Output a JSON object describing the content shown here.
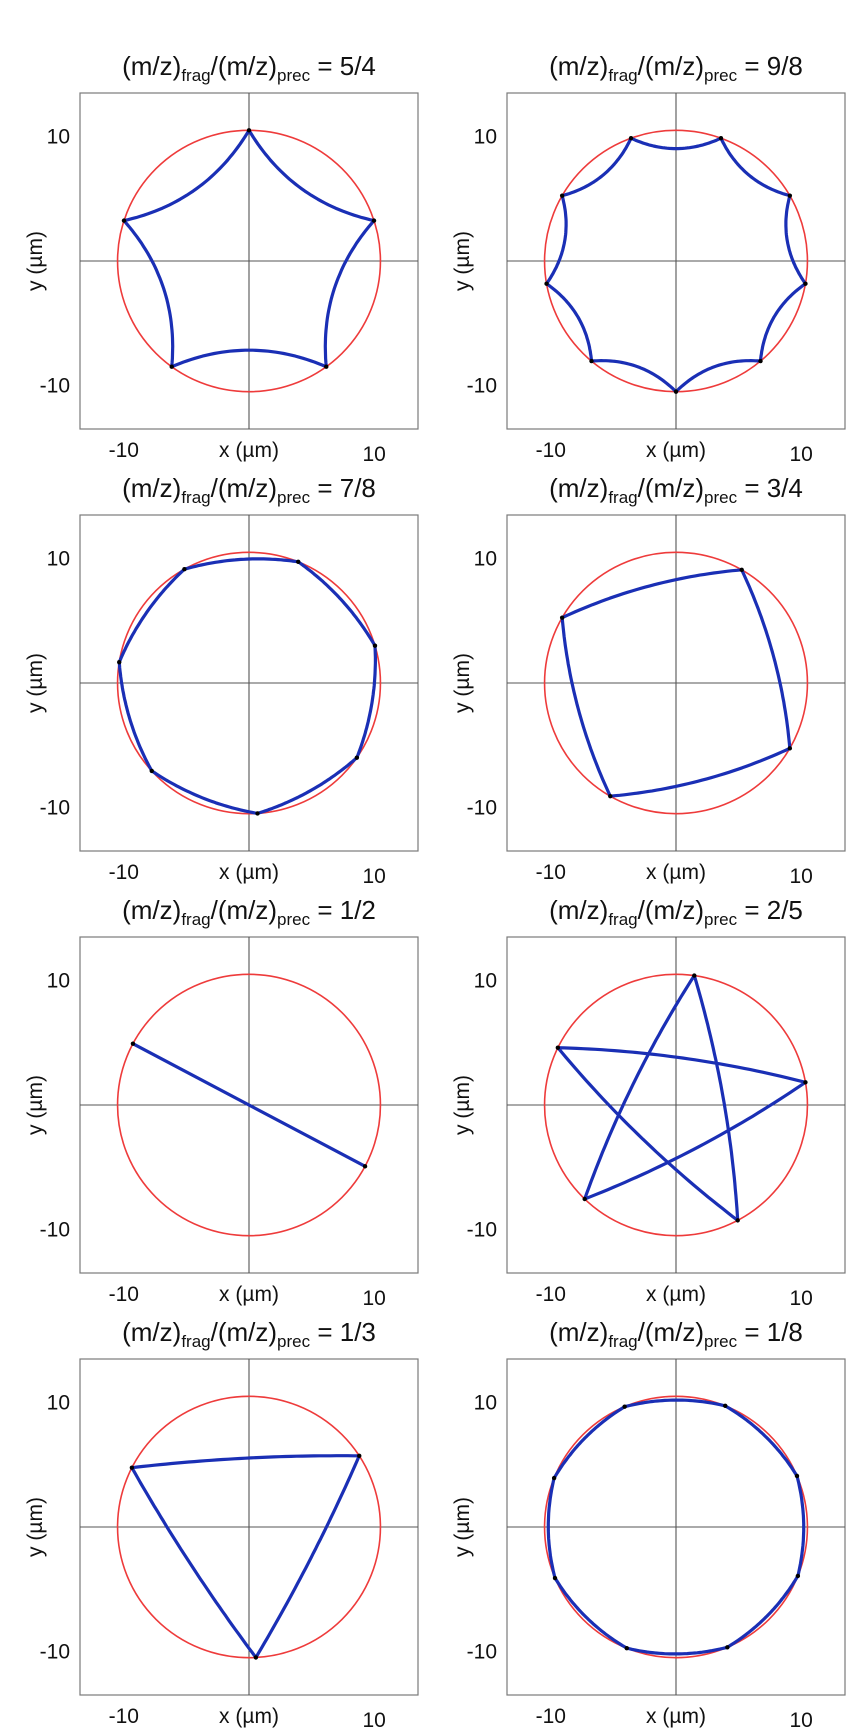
{
  "figure": {
    "colors": {
      "trajectory": "#1a2fb5",
      "circle": "#ee3b3b",
      "axis": "#555555",
      "frame": "#7a7a7a",
      "text": "#111111"
    }
  },
  "chart_data": [
    {
      "type": "line",
      "title": "(m/z)frag/(m/z)prec = 5/4",
      "title_parts": {
        "prefix": "(m/z)",
        "sub1": "frag",
        "mid": "/(m/z)",
        "sub2": "prec",
        "suffix": " = 5/4"
      },
      "ratio": [
        5,
        4
      ],
      "xlabel": "x (µm)",
      "ylabel": "y (µm)",
      "xticks": [
        "-10",
        "10"
      ],
      "yticks": [
        "10",
        "-10"
      ],
      "xlim": [
        -13.5,
        13.5
      ],
      "ylim": [
        -13.5,
        13.5
      ],
      "series": [
        {
          "kind": "circle",
          "center": [
            0,
            0
          ],
          "radius": 10.5
        },
        {
          "kind": "trajectory",
          "vertices": 5,
          "vertex_radius": 10.5,
          "first_vertex_angle_deg": 18,
          "loop_radius": 13.8
        }
      ]
    },
    {
      "type": "line",
      "title": "(m/z)frag/(m/z)prec = 9/8",
      "title_parts": {
        "prefix": "(m/z)",
        "sub1": "frag",
        "mid": "/(m/z)",
        "sub2": "prec",
        "suffix": " = 9/8"
      },
      "ratio": [
        9,
        8
      ],
      "xlabel": "x (µm)",
      "ylabel": "y (µm)",
      "xticks": [
        "-10",
        "10"
      ],
      "yticks": [
        "10",
        "-10"
      ],
      "xlim": [
        -13.5,
        13.5
      ],
      "ylim": [
        -13.5,
        13.5
      ],
      "series": [
        {
          "kind": "circle",
          "center": [
            0,
            0
          ],
          "radius": 10.5
        },
        {
          "kind": "trajectory",
          "vertices": 9,
          "vertex_radius": 10.5,
          "first_vertex_angle_deg": 70,
          "loop_radius": 13.2
        }
      ]
    },
    {
      "type": "line",
      "title": "(m/z)frag/(m/z)prec = 7/8",
      "title_parts": {
        "prefix": "(m/z)",
        "sub1": "frag",
        "mid": "/(m/z)",
        "sub2": "prec",
        "suffix": " = 7/8"
      },
      "ratio": [
        7,
        8
      ],
      "xlabel": "x (µm)",
      "ylabel": "y (µm)",
      "xticks": [
        "-10",
        "10"
      ],
      "yticks": [
        "10",
        "-10"
      ],
      "xlim": [
        -13.5,
        13.5
      ],
      "ylim": [
        -13.5,
        13.5
      ],
      "series": [
        {
          "kind": "circle",
          "center": [
            0,
            0
          ],
          "radius": 10.5
        },
        {
          "kind": "trajectory",
          "vertices": 7,
          "vertex_radius": 10.5,
          "first_vertex_angle_deg": 68,
          "loop_radius": 7.5
        }
      ]
    },
    {
      "type": "line",
      "title": "(m/z)frag/(m/z)prec = 3/4",
      "title_parts": {
        "prefix": "(m/z)",
        "sub1": "frag",
        "mid": "/(m/z)",
        "sub2": "prec",
        "suffix": " = 3/4"
      },
      "ratio": [
        3,
        4
      ],
      "xlabel": "x (µm)",
      "ylabel": "y (µm)",
      "xticks": [
        "-10",
        "10"
      ],
      "yticks": [
        "10",
        "-10"
      ],
      "xlim": [
        -13.5,
        13.5
      ],
      "ylim": [
        -13.5,
        13.5
      ],
      "series": [
        {
          "kind": "circle",
          "center": [
            0,
            0
          ],
          "radius": 10.5
        },
        {
          "kind": "trajectory",
          "vertices": 4,
          "vertex_radius": 10.5,
          "first_vertex_angle_deg": 60,
          "loop_radius": 4.8
        }
      ]
    },
    {
      "type": "line",
      "title": "(m/z)frag/(m/z)prec = 1/2",
      "title_parts": {
        "prefix": "(m/z)",
        "sub1": "frag",
        "mid": "/(m/z)",
        "sub2": "prec",
        "suffix": " = 1/2"
      },
      "ratio": [
        1,
        2
      ],
      "xlabel": "x (µm)",
      "ylabel": "y (µm)",
      "xticks": [
        "-10",
        "10"
      ],
      "yticks": [
        "10",
        "-10"
      ],
      "xlim": [
        -13.5,
        13.5
      ],
      "ylim": [
        -13.5,
        13.5
      ],
      "series": [
        {
          "kind": "circle",
          "center": [
            0,
            0
          ],
          "radius": 10.5
        },
        {
          "kind": "trajectory",
          "vertices": 2,
          "vertex_radius": 10.5,
          "first_vertex_angle_deg": 152,
          "loop_radius": 0
        }
      ]
    },
    {
      "type": "line",
      "title": "(m/z)frag/(m/z)prec = 2/5",
      "title_parts": {
        "prefix": "(m/z)",
        "sub1": "frag",
        "mid": "/(m/z)",
        "sub2": "prec",
        "suffix": " = 2/5"
      },
      "ratio": [
        2,
        5
      ],
      "xlabel": "x (µm)",
      "ylabel": "y (µm)",
      "xticks": [
        "-10",
        "10"
      ],
      "yticks": [
        "10",
        "-10"
      ],
      "xlim": [
        -13.5,
        13.5
      ],
      "ylim": [
        -13.5,
        13.5
      ],
      "series": [
        {
          "kind": "circle",
          "center": [
            0,
            0
          ],
          "radius": 10.5
        },
        {
          "kind": "trajectory",
          "vertices": 5,
          "vertex_radius": 10.5,
          "first_vertex_angle_deg": 82,
          "vertex_step": 2,
          "curve_offset": 0.7
        }
      ]
    },
    {
      "type": "line",
      "title": "(m/z)frag/(m/z)prec = 1/3",
      "title_parts": {
        "prefix": "(m/z)",
        "sub1": "frag",
        "mid": "/(m/z)",
        "sub2": "prec",
        "suffix": " = 1/3"
      },
      "ratio": [
        1,
        3
      ],
      "xlabel": "x (µm)",
      "ylabel": "y (µm)",
      "xticks": [
        "-10",
        "10"
      ],
      "yticks": [
        "10",
        "-10"
      ],
      "xlim": [
        -13.5,
        13.5
      ],
      "ylim": [
        -13.5,
        13.5
      ],
      "series": [
        {
          "kind": "circle",
          "center": [
            0,
            0
          ],
          "radius": 10.5
        },
        {
          "kind": "trajectory",
          "vertices": 3,
          "vertex_radius": 10.5,
          "first_vertex_angle_deg": 33,
          "loop_radius": 4.1
        }
      ]
    },
    {
      "type": "line",
      "title": "(m/z)frag/(m/z)prec = 1/8",
      "title_parts": {
        "prefix": "(m/z)",
        "sub1": "frag",
        "mid": "/(m/z)",
        "sub2": "prec",
        "suffix": " = 1/8"
      },
      "ratio": [
        1,
        8
      ],
      "xlabel": "x (µm)",
      "ylabel": "y (µm)",
      "xticks": [
        "-10",
        "10"
      ],
      "yticks": [
        "10",
        "-10"
      ],
      "xlim": [
        -13.5,
        13.5
      ],
      "ylim": [
        -13.5,
        13.5
      ],
      "series": [
        {
          "kind": "circle",
          "center": [
            0,
            0
          ],
          "radius": 10.5
        },
        {
          "kind": "trajectory",
          "vertices": 8,
          "vertex_radius": 10.5,
          "first_vertex_angle_deg": 68,
          "loop_radius": 7.7
        }
      ]
    }
  ]
}
